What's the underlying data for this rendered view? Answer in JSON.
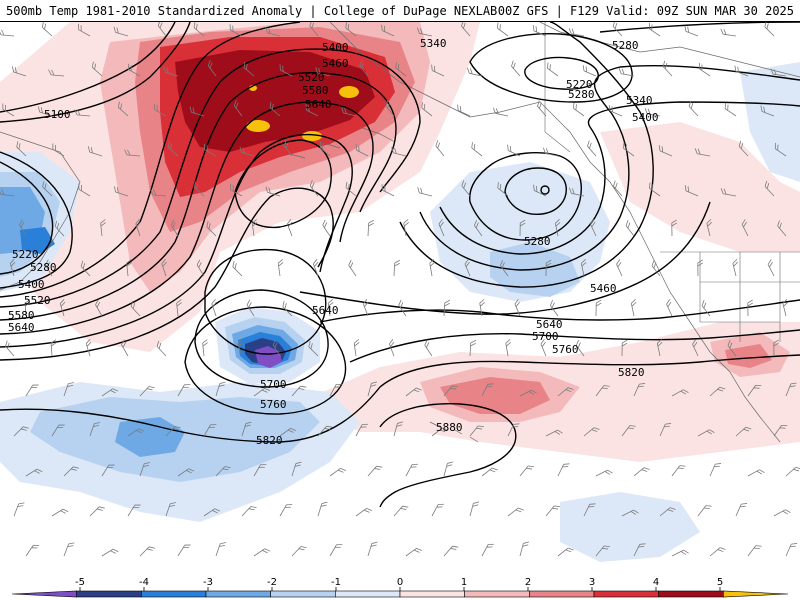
{
  "header": {
    "title_left": "500mb Temp 1981-2010 Standardized Anomaly | College of DuPage NEXLAB",
    "title_right": "00Z GFS | F129 Valid: 09Z SUN MAR 30 2025"
  },
  "colors": {
    "neg5": "#7e4fc4",
    "neg4": "#2b3f87",
    "neg3": "#2a80d8",
    "neg2": "#6ea9e5",
    "neg1": "#b6d2f0",
    "neg0": "#dce8f7",
    "pos0": "#fbe3e4",
    "pos1": "#f3b9bb",
    "pos2": "#e88487",
    "pos3": "#d93038",
    "pos4": "#9e0d19",
    "pos5": "#f7c10b"
  },
  "contour_labels": [
    {
      "name": "label-5400-north",
      "text": "5400"
    },
    {
      "name": "label-5340-north",
      "text": "5340"
    },
    {
      "name": "label-5280-northeast",
      "text": "5280"
    },
    {
      "name": "label-5460",
      "text": "5460"
    },
    {
      "name": "label-5520",
      "text": "5520"
    },
    {
      "name": "label-5580",
      "text": "5580"
    },
    {
      "name": "label-5640-low",
      "text": "5640"
    },
    {
      "name": "label-5100",
      "text": "5100"
    },
    {
      "name": "label-5220-ne",
      "text": "5220"
    },
    {
      "name": "label-5280-ne2",
      "text": "5280"
    },
    {
      "name": "label-5340-east",
      "text": "5340"
    },
    {
      "name": "label-5400-east",
      "text": "5400"
    },
    {
      "name": "label-5280-central",
      "text": "5280"
    },
    {
      "name": "label-5460-east",
      "text": "5460"
    },
    {
      "name": "label-5640-east",
      "text": "5640"
    },
    {
      "name": "label-5700-east",
      "text": "5700"
    },
    {
      "name": "label-5760-east",
      "text": "5760"
    },
    {
      "name": "label-5820-east",
      "text": "5820"
    },
    {
      "name": "label-5640-cutoff",
      "text": "5640"
    },
    {
      "name": "label-5700-cutoff",
      "text": "5700"
    },
    {
      "name": "label-5760-cutoff",
      "text": "5760"
    },
    {
      "name": "label-5820-south",
      "text": "5820"
    },
    {
      "name": "label-5880",
      "text": "5880"
    },
    {
      "name": "label-5220-west",
      "text": "5220"
    },
    {
      "name": "label-5280-west",
      "text": "5280"
    },
    {
      "name": "label-5400-west",
      "text": "5400"
    },
    {
      "name": "label-5520-west",
      "text": "5520"
    },
    {
      "name": "label-5580-west",
      "text": "5580"
    },
    {
      "name": "label-5640-west",
      "text": "5640"
    }
  ],
  "colorbar": {
    "ticks": [
      "-5",
      "-4",
      "-3",
      "-2",
      "-1",
      "0",
      "1",
      "2",
      "3",
      "4",
      "5"
    ]
  }
}
